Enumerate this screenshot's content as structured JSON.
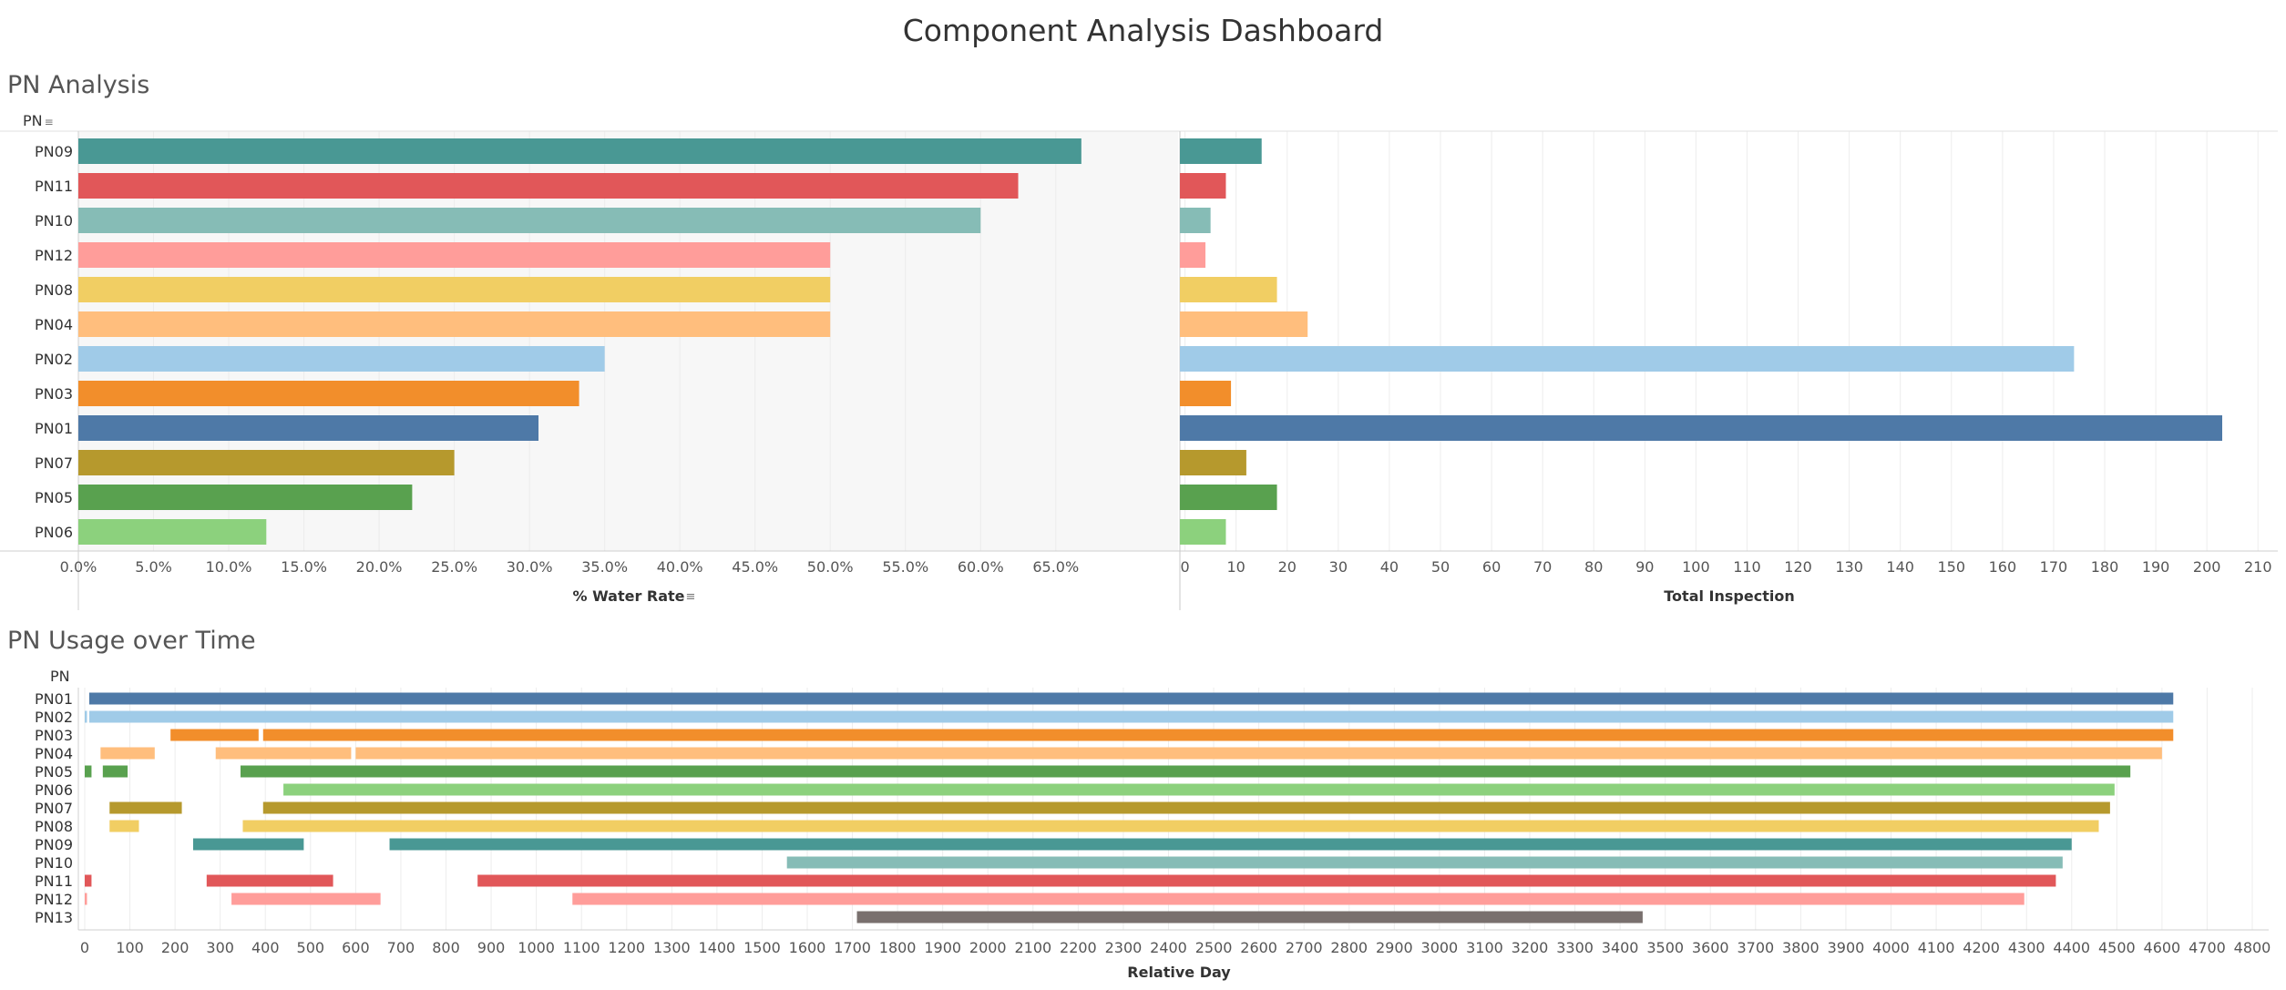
{
  "title": "Component Analysis Dashboard",
  "sections": {
    "pn_analysis": {
      "title": "PN Analysis",
      "row_header": "PN"
    },
    "pn_usage": {
      "title": "PN Usage over Time",
      "row_header": "PN"
    }
  },
  "colors": {
    "PN01": "#4e79a7",
    "PN02": "#a0cbe8",
    "PN03": "#f28e2b",
    "PN04": "#ffbe7d",
    "PN05": "#59a14f",
    "PN06": "#8cd17d",
    "PN07": "#b6992d",
    "PN08": "#f1ce63",
    "PN09": "#499894",
    "PN10": "#86bcb6",
    "PN11": "#e15759",
    "PN12": "#ff9d9a",
    "PN13": "#79706e"
  },
  "chart_data": [
    {
      "type": "bar",
      "orientation": "horizontal",
      "categories": [
        "PN09",
        "PN11",
        "PN10",
        "PN12",
        "PN08",
        "PN04",
        "PN02",
        "PN03",
        "PN01",
        "PN07",
        "PN05",
        "PN06"
      ],
      "values": [
        66.7,
        62.5,
        60.0,
        50.0,
        50.0,
        50.0,
        35.0,
        33.3,
        30.6,
        25.0,
        22.2,
        12.5
      ],
      "xlabel": "% Water Rate",
      "ylabel": "PN",
      "xlim": [
        0,
        69.8
      ],
      "xticks": [
        0,
        5,
        10,
        15,
        20,
        25,
        30,
        35,
        40,
        45,
        50,
        55,
        60,
        65
      ],
      "tick_format": "percent",
      "grid": true
    },
    {
      "type": "bar",
      "orientation": "horizontal",
      "categories": [
        "PN09",
        "PN11",
        "PN10",
        "PN12",
        "PN08",
        "PN04",
        "PN02",
        "PN03",
        "PN01",
        "PN07",
        "PN05",
        "PN06"
      ],
      "values": [
        15,
        8,
        5,
        4,
        18,
        24,
        174,
        9,
        203,
        12,
        18,
        8
      ],
      "xlabel": "Total Inspection",
      "xlim": [
        -1,
        214
      ],
      "xticks": [
        0,
        10,
        20,
        30,
        40,
        50,
        60,
        70,
        80,
        90,
        100,
        110,
        120,
        130,
        140,
        150,
        160,
        170,
        180,
        190,
        200,
        210
      ],
      "grid": true
    },
    {
      "type": "gantt",
      "categories": [
        "PN01",
        "PN02",
        "PN03",
        "PN04",
        "PN05",
        "PN06",
        "PN07",
        "PN08",
        "PN09",
        "PN10",
        "PN11",
        "PN12",
        "PN13"
      ],
      "segments": [
        {
          "pn": "PN01",
          "start": 10,
          "end": 4625
        },
        {
          "pn": "PN02",
          "start": 0,
          "end": 5
        },
        {
          "pn": "PN02",
          "start": 10,
          "end": 4625
        },
        {
          "pn": "PN03",
          "start": 190,
          "end": 385
        },
        {
          "pn": "PN03",
          "start": 395,
          "end": 4625
        },
        {
          "pn": "PN04",
          "start": 35,
          "end": 155
        },
        {
          "pn": "PN04",
          "start": 290,
          "end": 590
        },
        {
          "pn": "PN04",
          "start": 600,
          "end": 4600
        },
        {
          "pn": "PN05",
          "start": 0,
          "end": 15
        },
        {
          "pn": "PN05",
          "start": 40,
          "end": 95
        },
        {
          "pn": "PN05",
          "start": 345,
          "end": 4530
        },
        {
          "pn": "PN06",
          "start": 440,
          "end": 4495
        },
        {
          "pn": "PN07",
          "start": 55,
          "end": 215
        },
        {
          "pn": "PN07",
          "start": 395,
          "end": 4485
        },
        {
          "pn": "PN08",
          "start": 55,
          "end": 120
        },
        {
          "pn": "PN08",
          "start": 350,
          "end": 4460
        },
        {
          "pn": "PN09",
          "start": 240,
          "end": 485
        },
        {
          "pn": "PN09",
          "start": 675,
          "end": 4400
        },
        {
          "pn": "PN10",
          "start": 1555,
          "end": 4380
        },
        {
          "pn": "PN11",
          "start": 0,
          "end": 15
        },
        {
          "pn": "PN11",
          "start": 270,
          "end": 550
        },
        {
          "pn": "PN11",
          "start": 870,
          "end": 4365
        },
        {
          "pn": "PN12",
          "start": 0,
          "end": 5
        },
        {
          "pn": "PN12",
          "start": 325,
          "end": 655
        },
        {
          "pn": "PN12",
          "start": 1080,
          "end": 4295
        },
        {
          "pn": "PN13",
          "start": 1710,
          "end": 3450
        }
      ],
      "xlabel": "Relative Day",
      "ylabel": "PN",
      "xlim": [
        -10,
        4800
      ],
      "xticks": [
        0,
        100,
        200,
        300,
        400,
        500,
        600,
        700,
        800,
        900,
        1000,
        1100,
        1200,
        1300,
        1400,
        1500,
        1600,
        1700,
        1800,
        1900,
        2000,
        2100,
        2200,
        2300,
        2400,
        2500,
        2600,
        2700,
        2800,
        2900,
        3000,
        3100,
        3200,
        3300,
        3400,
        3500,
        3600,
        3700,
        3800,
        3900,
        4000,
        4100,
        4200,
        4300,
        4400,
        4500,
        4600,
        4700,
        4800
      ],
      "grid": true
    }
  ]
}
